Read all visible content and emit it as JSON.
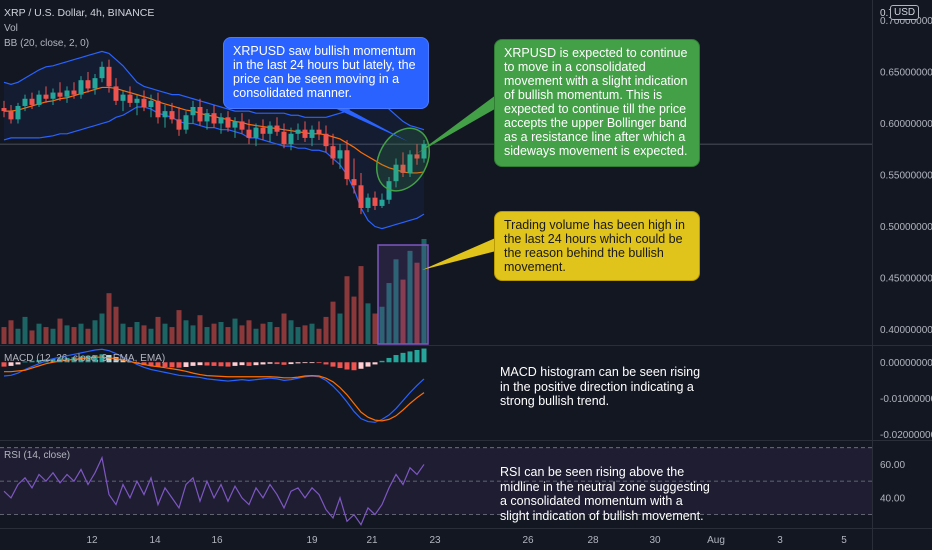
{
  "header": {
    "symbol": "XRP / U.S. Dollar, 4h, BINANCE",
    "vol": "Vol",
    "bb": "BB (20, close, 2, 0)",
    "currency": "USD",
    "price_top": "0.7"
  },
  "macd_label": "MACD (12, 26, close, 9, EMA, EMA)",
  "rsi_label": "RSI (14, close)",
  "annotations": {
    "blue": "XRPUSD saw bullish momentum in the last 24 hours but lately, the price can be seen moving in a consolidated manner.",
    "green": "XRPUSD is expected to continue to move in a consolidated movement with a slight indication of bullish momentum. This is expected to continue till the price accepts the upper Bollinger band as a resistance line after which a sideways movement is expected.",
    "yellow": "Trading volume has been high in the last 24 hours which could be the reason behind the bullish movement.",
    "macd": "MACD histogram can be seen rising in the positive direction indicating a strong bullish trend.",
    "rsi": "RSI can be seen rising above the midline in the neutral zone suggesting a consolidated momentum with a slight indication of bullish movement."
  },
  "colors": {
    "background": "#131722",
    "bullish": "#26a69a",
    "bearish": "#ef5350",
    "bb_band": "#2962ff",
    "bb_basis": "#ff6d00",
    "rsi_line": "#7e57c2",
    "blue_box": "#2962ff",
    "green_box": "#43a047",
    "yellow_box": "#e0c31b"
  },
  "chart_data": [
    {
      "type": "candlestick",
      "title": "XRP / U.S. Dollar, 4h, BINANCE",
      "y_ticks": [
        "0.40000000",
        "0.45000000",
        "0.50000000",
        "0.55000000",
        "0.60000000",
        "0.65000000",
        "0.70000000"
      ],
      "ylim": [
        0.385,
        0.715
      ],
      "x_ticks": [
        "12",
        "14",
        "16",
        "19",
        "21",
        "23",
        "26",
        "28",
        "30",
        "Aug",
        "3",
        "5"
      ],
      "ohlc": [
        [
          0.615,
          0.622,
          0.606,
          0.612
        ],
        [
          0.612,
          0.618,
          0.6,
          0.604
        ],
        [
          0.604,
          0.62,
          0.6,
          0.617
        ],
        [
          0.617,
          0.628,
          0.612,
          0.624
        ],
        [
          0.624,
          0.63,
          0.614,
          0.618
        ],
        [
          0.618,
          0.632,
          0.616,
          0.628
        ],
        [
          0.628,
          0.636,
          0.62,
          0.624
        ],
        [
          0.624,
          0.634,
          0.618,
          0.63
        ],
        [
          0.63,
          0.64,
          0.622,
          0.626
        ],
        [
          0.626,
          0.636,
          0.62,
          0.632
        ],
        [
          0.632,
          0.64,
          0.624,
          0.628
        ],
        [
          0.628,
          0.646,
          0.624,
          0.642
        ],
        [
          0.642,
          0.65,
          0.63,
          0.634
        ],
        [
          0.634,
          0.648,
          0.628,
          0.644
        ],
        [
          0.644,
          0.66,
          0.64,
          0.655
        ],
        [
          0.655,
          0.662,
          0.63,
          0.636
        ],
        [
          0.636,
          0.644,
          0.618,
          0.622
        ],
        [
          0.622,
          0.632,
          0.612,
          0.628
        ],
        [
          0.628,
          0.636,
          0.616,
          0.62
        ],
        [
          0.62,
          0.628,
          0.608,
          0.624
        ],
        [
          0.624,
          0.632,
          0.612,
          0.616
        ],
        [
          0.616,
          0.628,
          0.606,
          0.622
        ],
        [
          0.622,
          0.63,
          0.6,
          0.606
        ],
        [
          0.606,
          0.618,
          0.596,
          0.612
        ],
        [
          0.612,
          0.62,
          0.6,
          0.604
        ],
        [
          0.604,
          0.616,
          0.588,
          0.594
        ],
        [
          0.594,
          0.612,
          0.59,
          0.608
        ],
        [
          0.608,
          0.622,
          0.6,
          0.616
        ],
        [
          0.616,
          0.624,
          0.598,
          0.602
        ],
        [
          0.602,
          0.614,
          0.594,
          0.61
        ],
        [
          0.61,
          0.618,
          0.596,
          0.6
        ],
        [
          0.6,
          0.61,
          0.59,
          0.606
        ],
        [
          0.606,
          0.612,
          0.592,
          0.596
        ],
        [
          0.596,
          0.606,
          0.586,
          0.602
        ],
        [
          0.602,
          0.61,
          0.59,
          0.594
        ],
        [
          0.594,
          0.604,
          0.58,
          0.586
        ],
        [
          0.586,
          0.6,
          0.578,
          0.596
        ],
        [
          0.596,
          0.604,
          0.584,
          0.59
        ],
        [
          0.59,
          0.602,
          0.582,
          0.598
        ],
        [
          0.598,
          0.606,
          0.588,
          0.592
        ],
        [
          0.592,
          0.6,
          0.576,
          0.58
        ],
        [
          0.58,
          0.596,
          0.574,
          0.59
        ],
        [
          0.59,
          0.6,
          0.584,
          0.594
        ],
        [
          0.594,
          0.602,
          0.582,
          0.586
        ],
        [
          0.586,
          0.598,
          0.578,
          0.594
        ],
        [
          0.594,
          0.602,
          0.584,
          0.59
        ],
        [
          0.59,
          0.598,
          0.572,
          0.578
        ],
        [
          0.578,
          0.59,
          0.56,
          0.566
        ],
        [
          0.566,
          0.58,
          0.556,
          0.574
        ],
        [
          0.574,
          0.584,
          0.54,
          0.546
        ],
        [
          0.546,
          0.566,
          0.532,
          0.54
        ],
        [
          0.54,
          0.552,
          0.512,
          0.518
        ],
        [
          0.518,
          0.532,
          0.514,
          0.528
        ],
        [
          0.528,
          0.534,
          0.516,
          0.52
        ],
        [
          0.52,
          0.532,
          0.518,
          0.526
        ],
        [
          0.526,
          0.548,
          0.522,
          0.544
        ],
        [
          0.544,
          0.566,
          0.538,
          0.56
        ],
        [
          0.56,
          0.572,
          0.548,
          0.552
        ],
        [
          0.552,
          0.574,
          0.548,
          0.57
        ],
        [
          0.57,
          0.58,
          0.56,
          0.566
        ],
        [
          0.566,
          0.584,
          0.562,
          0.58
        ]
      ],
      "volume": [
        10,
        14,
        9,
        16,
        8,
        12,
        10,
        9,
        15,
        11,
        10,
        12,
        9,
        14,
        18,
        30,
        22,
        12,
        10,
        13,
        11,
        9,
        16,
        12,
        10,
        20,
        14,
        11,
        17,
        10,
        12,
        13,
        10,
        15,
        11,
        14,
        9,
        12,
        13,
        10,
        18,
        14,
        10,
        11,
        12,
        9,
        16,
        25,
        18,
        40,
        28,
        46,
        24,
        18,
        22,
        36,
        50,
        38,
        55,
        48,
        62
      ],
      "bb_upper": [
        0.64,
        0.638,
        0.64,
        0.644,
        0.648,
        0.652,
        0.655,
        0.656,
        0.658,
        0.66,
        0.662,
        0.664,
        0.666,
        0.668,
        0.67,
        0.668,
        0.662,
        0.656,
        0.648,
        0.64,
        0.636,
        0.634,
        0.632,
        0.63,
        0.628,
        0.628,
        0.626,
        0.624,
        0.622,
        0.62,
        0.618,
        0.616,
        0.614,
        0.612,
        0.612,
        0.612,
        0.61,
        0.61,
        0.61,
        0.61,
        0.61,
        0.608,
        0.608,
        0.606,
        0.606,
        0.606,
        0.606,
        0.608,
        0.61,
        0.612,
        0.618,
        0.626,
        0.63,
        0.628,
        0.622,
        0.614,
        0.608,
        0.602,
        0.598,
        0.596,
        0.594
      ],
      "bb_basis": [
        0.612,
        0.612,
        0.613,
        0.615,
        0.617,
        0.619,
        0.621,
        0.622,
        0.624,
        0.625,
        0.627,
        0.629,
        0.631,
        0.633,
        0.635,
        0.635,
        0.634,
        0.632,
        0.63,
        0.628,
        0.626,
        0.624,
        0.621,
        0.619,
        0.617,
        0.615,
        0.613,
        0.612,
        0.61,
        0.608,
        0.607,
        0.605,
        0.604,
        0.602,
        0.601,
        0.599,
        0.598,
        0.597,
        0.596,
        0.595,
        0.594,
        0.593,
        0.592,
        0.591,
        0.59,
        0.59,
        0.589,
        0.587,
        0.585,
        0.581,
        0.577,
        0.572,
        0.568,
        0.564,
        0.56,
        0.557,
        0.555,
        0.553,
        0.552,
        0.552,
        0.553
      ],
      "bb_lower": [
        0.584,
        0.586,
        0.586,
        0.586,
        0.586,
        0.586,
        0.587,
        0.588,
        0.59,
        0.59,
        0.592,
        0.594,
        0.596,
        0.598,
        0.6,
        0.602,
        0.606,
        0.608,
        0.612,
        0.616,
        0.616,
        0.614,
        0.61,
        0.608,
        0.606,
        0.602,
        0.6,
        0.6,
        0.598,
        0.596,
        0.596,
        0.594,
        0.594,
        0.592,
        0.59,
        0.586,
        0.586,
        0.584,
        0.582,
        0.58,
        0.578,
        0.578,
        0.576,
        0.576,
        0.574,
        0.574,
        0.572,
        0.566,
        0.56,
        0.55,
        0.536,
        0.518,
        0.506,
        0.5,
        0.498,
        0.5,
        0.502,
        0.504,
        0.506,
        0.508,
        0.512
      ]
    },
    {
      "type": "bar",
      "title": "MACD (12, 26, close, 9, EMA, EMA)",
      "y_ticks": [
        "0.00000000",
        "-0.01000000",
        "-0.02000000"
      ],
      "ylim": [
        -0.0215,
        0.0045
      ],
      "histogram": [
        -0.0012,
        -0.001,
        -0.0006,
        0.0002,
        0.0004,
        0.0006,
        0.0008,
        0.001,
        0.0011,
        0.0012,
        0.0014,
        0.0016,
        0.0018,
        0.002,
        0.0022,
        0.002,
        0.0014,
        0.0008,
        0.0002,
        -0.0004,
        -0.0008,
        -0.001,
        -0.0012,
        -0.0013,
        -0.0014,
        -0.0015,
        -0.0013,
        -0.001,
        -0.0008,
        -0.0009,
        -0.001,
        -0.0011,
        -0.0012,
        -0.001,
        -0.0008,
        -0.001,
        -0.0008,
        -0.0006,
        -0.0004,
        -0.0005,
        -0.0007,
        -0.0005,
        -0.0003,
        -0.0002,
        -0.0001,
        -0.0002,
        -0.0006,
        -0.0012,
        -0.0016,
        -0.002,
        -0.0022,
        -0.0018,
        -0.0012,
        -0.0006,
        0.0004,
        0.0012,
        0.002,
        0.0026,
        0.003,
        0.0034,
        0.0038
      ],
      "macd": [
        -0.0038,
        -0.0036,
        -0.003,
        -0.002,
        -0.0012,
        -0.0004,
        0.0004,
        0.001,
        0.0014,
        0.0018,
        0.0022,
        0.0026,
        0.003,
        0.0034,
        0.0036,
        0.0032,
        0.0024,
        0.0014,
        0.0004,
        -0.0006,
        -0.0014,
        -0.002,
        -0.0024,
        -0.0028,
        -0.0032,
        -0.0036,
        -0.0038,
        -0.004,
        -0.0042,
        -0.0046,
        -0.0048,
        -0.005,
        -0.0052,
        -0.005,
        -0.0048,
        -0.005,
        -0.0048,
        -0.0046,
        -0.0044,
        -0.0046,
        -0.005,
        -0.0048,
        -0.0044,
        -0.004,
        -0.0038,
        -0.004,
        -0.005,
        -0.0066,
        -0.0086,
        -0.011,
        -0.0136,
        -0.0156,
        -0.0164,
        -0.0166,
        -0.0158,
        -0.0146,
        -0.0128,
        -0.0106,
        -0.0084,
        -0.0064,
        -0.0046
      ],
      "signal": [
        -0.0026,
        -0.0026,
        -0.0024,
        -0.0022,
        -0.0016,
        -0.001,
        -0.0004,
        0.0,
        0.0003,
        0.0006,
        0.0008,
        0.001,
        0.0012,
        0.0014,
        0.0014,
        0.0012,
        0.001,
        0.0006,
        0.0002,
        -0.0002,
        -0.0006,
        -0.001,
        -0.0012,
        -0.0015,
        -0.0018,
        -0.0021,
        -0.0025,
        -0.003,
        -0.0034,
        -0.0037,
        -0.0038,
        -0.0039,
        -0.004,
        -0.004,
        -0.004,
        -0.004,
        -0.004,
        -0.004,
        -0.004,
        -0.0041,
        -0.0043,
        -0.0043,
        -0.0041,
        -0.0038,
        -0.0037,
        -0.0038,
        -0.0044,
        -0.0054,
        -0.007,
        -0.009,
        -0.0114,
        -0.0138,
        -0.0152,
        -0.016,
        -0.0162,
        -0.0158,
        -0.0148,
        -0.0132,
        -0.0114,
        -0.0098,
        -0.0084
      ]
    },
    {
      "type": "line",
      "title": "RSI (14, close)",
      "y_ticks": [
        "60.00",
        "40.00"
      ],
      "ylim": [
        22,
        74
      ],
      "bands": [
        70,
        50,
        30
      ],
      "values": [
        44,
        40,
        48,
        52,
        46,
        54,
        50,
        55,
        49,
        54,
        50,
        57,
        48,
        55,
        64,
        42,
        36,
        48,
        40,
        50,
        42,
        52,
        36,
        46,
        40,
        34,
        48,
        52,
        38,
        50,
        40,
        48,
        38,
        47,
        40,
        36,
        46,
        40,
        48,
        42,
        34,
        44,
        46,
        40,
        46,
        42,
        33,
        28,
        40,
        26,
        30,
        24,
        34,
        30,
        36,
        46,
        54,
        48,
        58,
        54,
        60
      ]
    }
  ]
}
